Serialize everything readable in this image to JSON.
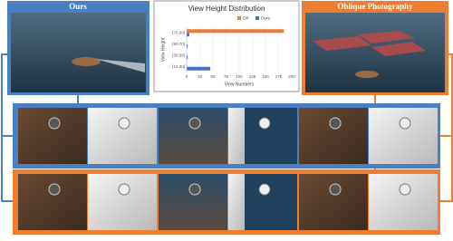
{
  "panels": {
    "left_title": "Ours",
    "right_title": "Oblique Photography"
  },
  "chart_data": {
    "type": "hbar",
    "title": "View Height Distribution",
    "x_label": "View Numbers",
    "y_label": "View Height",
    "categories": [
      "[10,30]",
      "[30,50]",
      "[50,70]",
      "[70,90]"
    ],
    "series": [
      {
        "name": "OP",
        "color": "#ed7d31",
        "values": [
          0,
          0,
          0,
          185
        ]
      },
      {
        "name": "Ours",
        "color": "#4472c4",
        "values": [
          45,
          2,
          2,
          5
        ]
      }
    ],
    "xlim": [
      0,
      200
    ],
    "xticks": [
      0,
      25,
      50,
      75,
      100,
      125,
      150,
      175,
      200
    ]
  }
}
